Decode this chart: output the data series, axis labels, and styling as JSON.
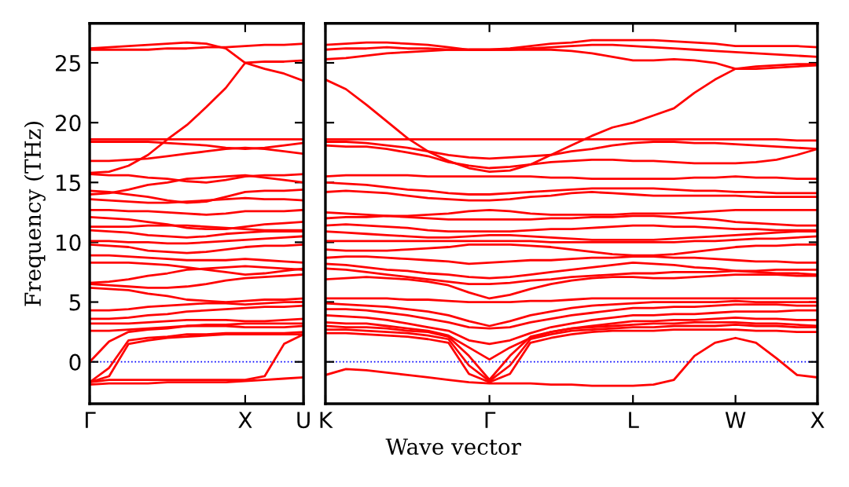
{
  "chart_data": [
    {
      "type": "line",
      "ylabel": "Frequency (THz)",
      "ylim": [
        -3.5,
        28.3
      ],
      "categories": [
        "Γ",
        null,
        null,
        null,
        null,
        null,
        null,
        null,
        "X",
        null,
        null,
        "U"
      ],
      "yticks": [
        0,
        5,
        10,
        15,
        20,
        25
      ],
      "grid": false,
      "line_style": "solid",
      "ref_lines": [
        {
          "axis": "y",
          "value": 0,
          "color": "#0000ff",
          "line_style": "dotted"
        }
      ],
      "series": [
        {
          "color": "#ff0000",
          "values": [
            26.2,
            26.3,
            26.4,
            26.5,
            26.6,
            26.7,
            26.6,
            26.2,
            25.0,
            24.5,
            24.1,
            23.5
          ]
        },
        {
          "color": "#ff0000",
          "values": [
            26.1,
            26.1,
            26.1,
            26.1,
            26.2,
            26.2,
            26.3,
            26.3,
            26.4,
            26.5,
            26.5,
            26.6
          ]
        },
        {
          "color": "#ff0000",
          "values": [
            15.8,
            15.9,
            16.4,
            17.3,
            18.6,
            19.8,
            21.3,
            22.9,
            25.0,
            25.1,
            25.1,
            25.2
          ]
        },
        {
          "color": "#ff0000",
          "values": [
            18.6,
            18.6,
            18.6,
            18.6,
            18.6,
            18.6,
            18.6,
            18.6,
            18.6,
            18.6,
            18.6,
            18.6
          ]
        },
        {
          "color": "#ff0000",
          "values": [
            18.4,
            18.4,
            18.4,
            18.4,
            18.3,
            18.2,
            18.1,
            17.9,
            17.8,
            17.9,
            18.1,
            18.3
          ]
        },
        {
          "color": "#ff0000",
          "values": [
            16.8,
            16.8,
            16.9,
            17.0,
            17.2,
            17.4,
            17.6,
            17.8,
            17.9,
            17.8,
            17.6,
            17.4
          ]
        },
        {
          "color": "#ff0000",
          "values": [
            15.7,
            15.6,
            15.6,
            15.4,
            15.3,
            15.1,
            15.0,
            15.2,
            15.5,
            15.6,
            15.6,
            15.7
          ]
        },
        {
          "color": "#ff0000",
          "values": [
            14.3,
            14.2,
            14.0,
            13.8,
            13.5,
            13.3,
            13.4,
            13.8,
            14.2,
            14.3,
            14.3,
            14.4
          ]
        },
        {
          "color": "#ff0000",
          "values": [
            14.0,
            14.1,
            14.4,
            14.8,
            15.0,
            15.3,
            15.4,
            15.5,
            15.6,
            15.4,
            15.2,
            15.0
          ]
        },
        {
          "color": "#ff0000",
          "values": [
            13.6,
            13.5,
            13.4,
            13.3,
            13.3,
            13.4,
            13.5,
            13.6,
            13.7,
            13.6,
            13.6,
            13.5
          ]
        },
        {
          "color": "#ff0000",
          "values": [
            12.7,
            12.7,
            12.6,
            12.6,
            12.5,
            12.4,
            12.3,
            12.4,
            12.6,
            12.6,
            12.6,
            12.7
          ]
        },
        {
          "color": "#ff0000",
          "values": [
            12.1,
            12.0,
            11.9,
            11.7,
            11.5,
            11.2,
            11.1,
            11.1,
            11.3,
            11.5,
            11.6,
            11.7
          ]
        },
        {
          "color": "#ff0000",
          "values": [
            11.3,
            11.3,
            11.3,
            11.4,
            11.4,
            11.4,
            11.3,
            11.2,
            11.1,
            11.0,
            11.0,
            11.0
          ]
        },
        {
          "color": "#ff0000",
          "values": [
            11.0,
            10.9,
            10.8,
            10.6,
            10.5,
            10.4,
            10.5,
            10.7,
            10.8,
            10.9,
            10.9,
            10.9
          ]
        },
        {
          "color": "#ff0000",
          "values": [
            10.1,
            10.1,
            10.0,
            10.0,
            9.9,
            9.9,
            10.0,
            10.1,
            10.2,
            10.3,
            10.4,
            10.5
          ]
        },
        {
          "color": "#ff0000",
          "values": [
            9.8,
            9.7,
            9.6,
            9.3,
            9.2,
            9.1,
            9.2,
            9.4,
            9.6,
            9.7,
            9.7,
            9.8
          ]
        },
        {
          "color": "#ff0000",
          "values": [
            8.9,
            8.9,
            8.8,
            8.7,
            8.6,
            8.5,
            8.5,
            8.5,
            8.6,
            8.5,
            8.4,
            8.3
          ]
        },
        {
          "color": "#ff0000",
          "values": [
            8.3,
            8.3,
            8.3,
            8.2,
            8.1,
            7.9,
            7.7,
            7.5,
            7.3,
            7.4,
            7.6,
            7.8
          ]
        },
        {
          "color": "#ff0000",
          "values": [
            6.6,
            6.7,
            6.9,
            7.2,
            7.4,
            7.7,
            7.8,
            7.9,
            8.0,
            7.9,
            7.8,
            7.7
          ]
        },
        {
          "color": "#ff0000",
          "values": [
            6.5,
            6.4,
            6.3,
            6.2,
            6.2,
            6.3,
            6.5,
            6.8,
            7.0,
            7.1,
            7.2,
            7.3
          ]
        },
        {
          "color": "#ff0000",
          "values": [
            6.2,
            6.1,
            6.0,
            5.7,
            5.5,
            5.2,
            5.1,
            5.0,
            5.1,
            5.2,
            5.2,
            5.3
          ]
        },
        {
          "color": "#ff0000",
          "values": [
            4.3,
            4.3,
            4.4,
            4.6,
            4.7,
            4.8,
            4.9,
            4.9,
            4.8,
            4.9,
            5.0,
            5.0
          ]
        },
        {
          "color": "#ff0000",
          "values": [
            3.6,
            3.6,
            3.7,
            3.9,
            4.0,
            4.2,
            4.3,
            4.4,
            4.5,
            4.6,
            4.6,
            4.7
          ]
        },
        {
          "color": "#ff0000",
          "values": [
            3.2,
            3.2,
            3.2,
            3.3,
            3.4,
            3.5,
            3.5,
            3.5,
            3.4,
            3.4,
            3.5,
            3.6
          ]
        },
        {
          "color": "#ff0000",
          "values": [
            2.6,
            2.6,
            2.7,
            2.8,
            2.9,
            3.0,
            3.1,
            3.1,
            3.2,
            3.2,
            3.2,
            3.2
          ]
        },
        {
          "color": "#ff0000",
          "values": [
            0,
            1.7,
            2.5,
            2.7,
            2.8,
            3.0,
            3.0,
            3.0,
            2.9,
            2.9,
            2.9,
            3.0
          ]
        },
        {
          "color": "#ff0000",
          "values": [
            -1.7,
            -0.5,
            1.8,
            2.0,
            2.1,
            2.3,
            2.3,
            2.4,
            2.4,
            2.4,
            2.4,
            2.5
          ]
        },
        {
          "color": "#ff0000",
          "values": [
            -1.7,
            -1.2,
            1.5,
            1.8,
            2.0,
            2.1,
            2.2,
            2.3,
            2.3,
            2.3,
            2.3,
            2.3
          ]
        },
        {
          "color": "#ff0000",
          "values": [
            -1.7,
            -1.5,
            -1.5,
            -1.5,
            -1.5,
            -1.5,
            -1.5,
            -1.5,
            -1.5,
            -1.2,
            1.5,
            2.3
          ]
        },
        {
          "color": "#ff0000",
          "values": [
            -1.9,
            -1.8,
            -1.8,
            -1.8,
            -1.7,
            -1.7,
            -1.7,
            -1.7,
            -1.6,
            -1.5,
            -1.4,
            -1.3
          ]
        }
      ]
    },
    {
      "type": "line",
      "xlabel": "Wave vector",
      "ylim": [
        -3.5,
        28.3
      ],
      "categories": [
        "K",
        null,
        null,
        null,
        null,
        null,
        null,
        null,
        "Γ",
        null,
        null,
        null,
        null,
        null,
        null,
        "L",
        null,
        null,
        null,
        null,
        "W",
        null,
        null,
        null,
        "X"
      ],
      "yticks": [
        0,
        5,
        10,
        15,
        20,
        25
      ],
      "tick_labels": "x",
      "grid": false,
      "line_style": "solid",
      "ref_lines": [
        {
          "axis": "y",
          "value": 0,
          "color": "#0000ff",
          "line_style": "dotted"
        }
      ],
      "series": [
        {
          "color": "#ff0000",
          "values": [
            26.5,
            26.6,
            26.7,
            26.7,
            26.6,
            26.5,
            26.3,
            26.1,
            26.1,
            26.2,
            26.4,
            26.6,
            26.7,
            26.9,
            26.9,
            26.9,
            26.9,
            26.8,
            26.7,
            26.6,
            26.4,
            26.4,
            26.4,
            26.4,
            26.3
          ]
        },
        {
          "color": "#ff0000",
          "values": [
            26.1,
            26.2,
            26.2,
            26.3,
            26.2,
            26.2,
            26.1,
            26.1,
            26.1,
            26.1,
            26.1,
            26.1,
            26.0,
            25.8,
            25.5,
            25.2,
            25.2,
            25.3,
            25.2,
            25.0,
            24.5,
            24.7,
            24.8,
            24.9,
            24.9
          ]
        },
        {
          "color": "#ff0000",
          "values": [
            25.3,
            25.4,
            25.6,
            25.8,
            25.9,
            26.0,
            26.1,
            26.1,
            26.1,
            26.1,
            26.2,
            26.3,
            26.4,
            26.5,
            26.5,
            26.4,
            26.3,
            26.2,
            26.1,
            26.0,
            25.9,
            25.8,
            25.7,
            25.6,
            25.5
          ]
        },
        {
          "color": "#ff0000",
          "values": [
            23.6,
            22.8,
            21.5,
            20.1,
            18.7,
            17.6,
            16.8,
            16.2,
            15.9,
            16.0,
            16.5,
            17.3,
            18.1,
            18.9,
            19.6,
            20.0,
            20.6,
            21.2,
            22.5,
            23.6,
            24.5,
            24.5,
            24.6,
            24.7,
            24.8
          ]
        },
        {
          "color": "#ff0000",
          "values": [
            18.6,
            18.6,
            18.6,
            18.6,
            18.6,
            18.6,
            18.6,
            18.6,
            18.6,
            18.6,
            18.6,
            18.6,
            18.6,
            18.6,
            18.6,
            18.6,
            18.6,
            18.6,
            18.6,
            18.6,
            18.6,
            18.6,
            18.6,
            18.5,
            18.5
          ]
        },
        {
          "color": "#ff0000",
          "values": [
            18.4,
            18.4,
            18.3,
            18.1,
            17.9,
            17.6,
            17.3,
            17.1,
            17.0,
            17.1,
            17.2,
            17.3,
            17.6,
            17.8,
            18.1,
            18.3,
            18.4,
            18.4,
            18.3,
            18.3,
            18.2,
            18.1,
            18.0,
            17.9,
            17.8
          ]
        },
        {
          "color": "#ff0000",
          "values": [
            18.1,
            18.0,
            18.0,
            17.8,
            17.5,
            17.2,
            16.7,
            16.4,
            16.2,
            16.3,
            16.5,
            16.7,
            16.8,
            16.9,
            16.9,
            16.8,
            16.8,
            16.7,
            16.6,
            16.6,
            16.6,
            16.7,
            16.9,
            17.3,
            17.8
          ]
        },
        {
          "color": "#ff0000",
          "values": [
            15.5,
            15.6,
            15.6,
            15.6,
            15.6,
            15.5,
            15.5,
            15.5,
            15.5,
            15.5,
            15.5,
            15.4,
            15.4,
            15.3,
            15.3,
            15.3,
            15.3,
            15.3,
            15.4,
            15.4,
            15.5,
            15.4,
            15.4,
            15.3,
            15.3
          ]
        },
        {
          "color": "#ff0000",
          "values": [
            15.0,
            14.9,
            14.8,
            14.6,
            14.4,
            14.3,
            14.1,
            14.0,
            14.0,
            14.1,
            14.2,
            14.3,
            14.4,
            14.5,
            14.5,
            14.5,
            14.5,
            14.4,
            14.3,
            14.3,
            14.2,
            14.2,
            14.1,
            14.1,
            14.1
          ]
        },
        {
          "color": "#ff0000",
          "values": [
            14.2,
            14.3,
            14.2,
            14.1,
            13.9,
            13.7,
            13.6,
            13.5,
            13.5,
            13.6,
            13.8,
            13.9,
            14.1,
            14.2,
            14.1,
            14.0,
            13.9,
            13.9,
            13.9,
            13.9,
            13.9,
            13.8,
            13.8,
            13.8,
            13.8
          ]
        },
        {
          "color": "#ff0000",
          "values": [
            12.5,
            12.4,
            12.3,
            12.2,
            12.2,
            12.3,
            12.4,
            12.6,
            12.7,
            12.6,
            12.4,
            12.3,
            12.3,
            12.3,
            12.3,
            12.4,
            12.4,
            12.4,
            12.5,
            12.6,
            12.7,
            12.7,
            12.7,
            12.7,
            12.7
          ]
        },
        {
          "color": "#ff0000",
          "values": [
            12.0,
            12.1,
            12.1,
            12.2,
            12.1,
            12.0,
            11.9,
            11.9,
            11.9,
            11.9,
            11.9,
            12.0,
            12.0,
            12.1,
            12.1,
            12.2,
            12.2,
            12.1,
            12.0,
            11.9,
            11.7,
            11.6,
            11.5,
            11.4,
            11.4
          ]
        },
        {
          "color": "#ff0000",
          "values": [
            11.4,
            11.5,
            11.4,
            11.3,
            11.2,
            11.0,
            10.9,
            10.9,
            10.9,
            10.9,
            11.0,
            11.1,
            11.1,
            11.2,
            11.3,
            11.4,
            11.4,
            11.3,
            11.3,
            11.2,
            11.1,
            11.1,
            11.0,
            11.0,
            11.0
          ]
        },
        {
          "color": "#ff0000",
          "values": [
            10.9,
            10.8,
            10.7,
            10.6,
            10.5,
            10.4,
            10.4,
            10.5,
            10.6,
            10.6,
            10.5,
            10.4,
            10.3,
            10.2,
            10.2,
            10.2,
            10.2,
            10.3,
            10.4,
            10.5,
            10.6,
            10.7,
            10.8,
            10.9,
            10.9
          ]
        },
        {
          "color": "#ff0000",
          "values": [
            10.1,
            10.1,
            10.1,
            10.1,
            10.1,
            10.1,
            10.1,
            10.1,
            10.1,
            10.1,
            10.1,
            10.0,
            10.0,
            10.0,
            10.0,
            10.0,
            10.0,
            10.0,
            10.1,
            10.1,
            10.2,
            10.3,
            10.3,
            10.4,
            10.5
          ]
        },
        {
          "color": "#ff0000",
          "values": [
            9.4,
            9.3,
            9.3,
            9.3,
            9.4,
            9.5,
            9.6,
            9.8,
            9.8,
            9.8,
            9.7,
            9.6,
            9.4,
            9.2,
            9.0,
            8.9,
            8.9,
            9.0,
            9.2,
            9.4,
            9.6,
            9.7,
            9.7,
            9.8,
            9.8
          ]
        },
        {
          "color": "#ff0000",
          "values": [
            8.7,
            8.8,
            8.8,
            8.7,
            8.6,
            8.5,
            8.4,
            8.2,
            8.3,
            8.4,
            8.5,
            8.5,
            8.6,
            8.7,
            8.7,
            8.8,
            8.8,
            8.7,
            8.7,
            8.6,
            8.5,
            8.4,
            8.4,
            8.3,
            8.3
          ]
        },
        {
          "color": "#ff0000",
          "values": [
            8.2,
            8.1,
            7.9,
            7.7,
            7.6,
            7.4,
            7.3,
            7.1,
            7.0,
            7.1,
            7.3,
            7.5,
            7.7,
            7.9,
            8.1,
            8.3,
            8.2,
            8.1,
            7.9,
            7.8,
            7.6,
            7.5,
            7.4,
            7.4,
            7.3
          ]
        },
        {
          "color": "#ff0000",
          "values": [
            7.8,
            7.7,
            7.5,
            7.3,
            7.1,
            6.9,
            6.7,
            6.5,
            6.5,
            6.6,
            6.8,
            6.9,
            7.1,
            7.2,
            7.3,
            7.4,
            7.4,
            7.5,
            7.5,
            7.5,
            7.6,
            7.6,
            7.7,
            7.7,
            7.7
          ]
        },
        {
          "color": "#ff0000",
          "values": [
            6.9,
            7.0,
            7.1,
            7.0,
            6.9,
            6.7,
            6.4,
            5.8,
            5.3,
            5.6,
            6.1,
            6.5,
            6.8,
            7.0,
            7.1,
            7.1,
            7.0,
            7.0,
            7.1,
            7.2,
            7.3,
            7.3,
            7.3,
            7.2,
            7.2
          ]
        },
        {
          "color": "#ff0000",
          "values": [
            5.3,
            5.3,
            5.3,
            5.3,
            5.2,
            5.2,
            5.1,
            5.0,
            5.0,
            5.0,
            5.1,
            5.1,
            5.2,
            5.3,
            5.3,
            5.3,
            5.3,
            5.3,
            5.3,
            5.3,
            5.3,
            5.3,
            5.3,
            5.3,
            5.3
          ]
        },
        {
          "color": "#ff0000",
          "values": [
            4.9,
            4.8,
            4.7,
            4.6,
            4.4,
            4.2,
            3.9,
            3.4,
            3.0,
            3.4,
            3.9,
            4.2,
            4.5,
            4.7,
            4.8,
            4.9,
            5.0,
            5.0,
            5.0,
            5.0,
            5.1,
            5.0,
            5.0,
            5.0,
            5.0
          ]
        },
        {
          "color": "#ff0000",
          "values": [
            4.4,
            4.4,
            4.3,
            4.1,
            3.9,
            3.6,
            3.3,
            2.9,
            2.8,
            2.9,
            3.3,
            3.6,
            3.9,
            4.1,
            4.3,
            4.5,
            4.5,
            4.6,
            4.6,
            4.7,
            4.8,
            4.8,
            4.8,
            4.7,
            4.7
          ]
        },
        {
          "color": "#ff0000",
          "values": [
            3.9,
            3.8,
            3.7,
            3.5,
            3.2,
            2.9,
            2.6,
            1.8,
            1.5,
            1.8,
            2.4,
            2.9,
            3.2,
            3.5,
            3.7,
            3.9,
            3.9,
            4.0,
            4.0,
            4.1,
            4.2,
            4.2,
            4.2,
            4.3,
            4.3
          ]
        },
        {
          "color": "#ff0000",
          "values": [
            3.3,
            3.2,
            3.2,
            3.0,
            2.8,
            2.6,
            2.2,
            1.2,
            0.2,
            1.2,
            2.0,
            2.5,
            2.8,
            3.0,
            3.2,
            3.4,
            3.4,
            3.5,
            3.5,
            3.6,
            3.7,
            3.6,
            3.6,
            3.5,
            3.5
          ]
        },
        {
          "color": "#ff0000",
          "values": [
            3.0,
            2.9,
            2.9,
            2.8,
            2.6,
            2.5,
            2.1,
            0.5,
            -1.5,
            0.5,
            2.1,
            2.5,
            2.8,
            2.9,
            3.0,
            3.1,
            3.2,
            3.2,
            3.3,
            3.3,
            3.3,
            3.2,
            3.2,
            3.1,
            3.0
          ]
        },
        {
          "color": "#ff0000",
          "values": [
            2.7,
            2.7,
            2.6,
            2.5,
            2.4,
            2.2,
            1.9,
            -0.3,
            -1.6,
            -0.3,
            1.9,
            2.3,
            2.6,
            2.7,
            2.8,
            2.9,
            2.9,
            3.0,
            3.0,
            3.0,
            3.1,
            3.0,
            3.0,
            2.9,
            2.9
          ]
        },
        {
          "color": "#ff0000",
          "values": [
            2.4,
            2.4,
            2.3,
            2.2,
            2.1,
            1.9,
            1.6,
            -1.0,
            -1.7,
            -1.0,
            1.6,
            2.0,
            2.3,
            2.5,
            2.6,
            2.6,
            2.6,
            2.7,
            2.7,
            2.7,
            2.7,
            2.6,
            2.6,
            2.5,
            2.5
          ]
        },
        {
          "color": "#ff0000",
          "values": [
            -1.1,
            -0.6,
            -0.7,
            -0.9,
            -1.1,
            -1.3,
            -1.5,
            -1.7,
            -1.8,
            -1.8,
            -1.8,
            -1.9,
            -1.9,
            -2.0,
            -2.0,
            -2.0,
            -1.9,
            -1.5,
            0.5,
            1.6,
            2.0,
            1.6,
            0.3,
            -1.1,
            -1.3
          ]
        }
      ]
    }
  ]
}
